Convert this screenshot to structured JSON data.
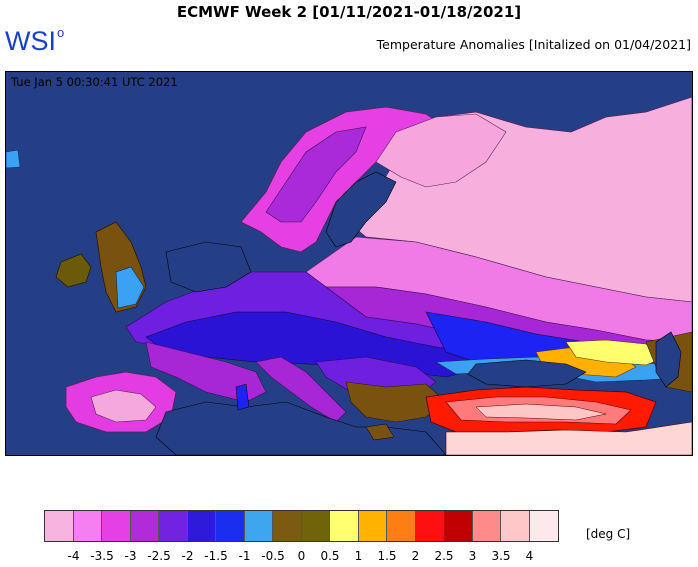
{
  "header": {
    "title": "ECMWF Week 2 [01/11/2021-01/18/2021]",
    "logo_text": "WSI",
    "logo_mark": "o",
    "subtitle": "Temperature Anomalies [Initalized on 01/04/2021]"
  },
  "map": {
    "timestamp": "Tue Jan  5 00:30:41 UTC 2021",
    "colors": {
      "ocean": "#253f87",
      "m4": "#f4a8dc",
      "m35": "#f07ae6",
      "m3": "#e23ce2",
      "m25": "#a726d6",
      "m2": "#6f1fe0",
      "m15": "#2a13d4",
      "m1": "#1d23f2",
      "m05": "#3ba1f2",
      "z0": "#7a5210",
      "p05": "#6a5a0a",
      "p1": "#ffff6e",
      "p15": "#ffb000",
      "p2": "#ff7a00",
      "p25": "#ff1a00",
      "p3": "#b00000",
      "p35": "#ff7a7a",
      "p4": "#ffc6c6",
      "p45": "#fff0f0"
    }
  },
  "legend": {
    "colors": [
      "#f7b4e0",
      "#f47ff0",
      "#e540e6",
      "#b22bd8",
      "#7222e1",
      "#2e1ad9",
      "#1b2ef0",
      "#3ea6ef",
      "#7b5a12",
      "#716309",
      "#ffff70",
      "#ffb300",
      "#ff7e14",
      "#ff1010",
      "#c00000",
      "#ff8a8a",
      "#ffc8c8",
      "#fde9e9"
    ],
    "labels": [
      "-4",
      "-3.5",
      "-3",
      "-2.5",
      "-2",
      "-1.5",
      "-1",
      "-0.5",
      "0",
      "0.5",
      "1",
      "1.5",
      "2",
      "2.5",
      "3",
      "3.5",
      "4"
    ],
    "units": "[deg C]"
  }
}
